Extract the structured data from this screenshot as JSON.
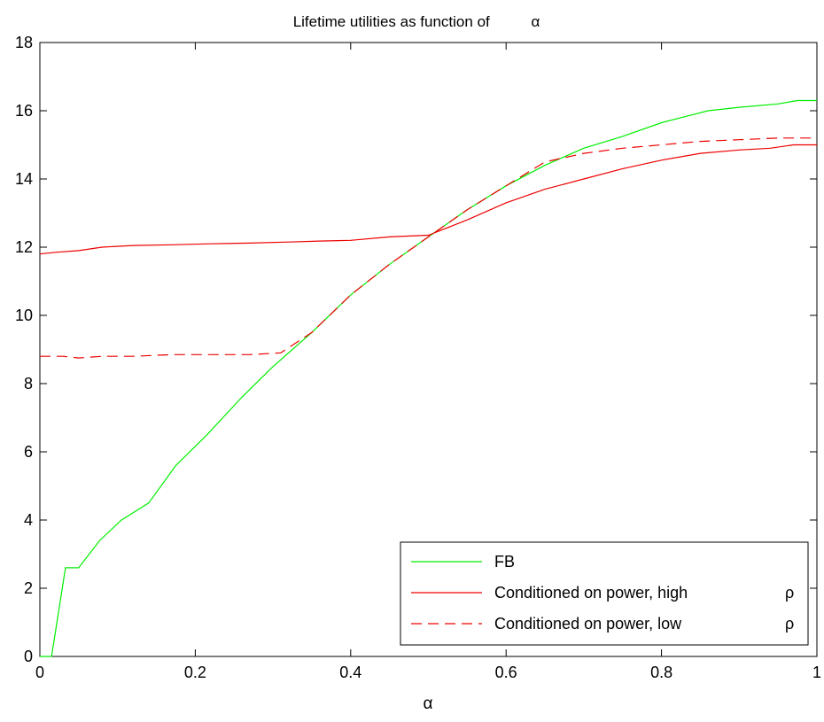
{
  "chart_data": {
    "type": "line",
    "title": "Lifetime utilities as function of",
    "title_symbol": "α",
    "xlabel": "α",
    "ylabel": "",
    "xlim": [
      0,
      1
    ],
    "ylim": [
      0,
      18
    ],
    "x_ticks": [
      "0",
      "0.2",
      "0.4",
      "0.6",
      "0.8",
      "1"
    ],
    "y_ticks": [
      "0",
      "2",
      "4",
      "6",
      "8",
      "10",
      "12",
      "14",
      "16",
      "18"
    ],
    "grid": false,
    "legend_position": "bottom-right",
    "series": [
      {
        "name": "FB",
        "legend_symbol": "",
        "color": "#00ee00",
        "style": "solid",
        "x": [
          0,
          0.015,
          0.033,
          0.05,
          0.077,
          0.105,
          0.14,
          0.175,
          0.215,
          0.26,
          0.3,
          0.35,
          0.4,
          0.45,
          0.5,
          0.55,
          0.6,
          0.65,
          0.7,
          0.75,
          0.8,
          0.86,
          0.9,
          0.95,
          0.975,
          1.0
        ],
        "y": [
          0.0,
          0.0,
          2.6,
          2.6,
          3.4,
          4.0,
          4.5,
          5.6,
          6.5,
          7.6,
          8.5,
          9.5,
          10.6,
          11.5,
          12.3,
          13.1,
          13.8,
          14.4,
          14.9,
          15.25,
          15.65,
          16.0,
          16.1,
          16.2,
          16.3,
          16.3
        ]
      },
      {
        "name": "Conditioned on power, high",
        "legend_symbol": "ρ",
        "color": "#ee0000",
        "style": "solid",
        "x": [
          0,
          0.02,
          0.05,
          0.08,
          0.12,
          0.17,
          0.22,
          0.27,
          0.32,
          0.36,
          0.4,
          0.45,
          0.5,
          0.55,
          0.6,
          0.65,
          0.7,
          0.75,
          0.8,
          0.85,
          0.9,
          0.94,
          0.97,
          1.0
        ],
        "y": [
          11.8,
          11.85,
          11.9,
          12.0,
          12.05,
          12.07,
          12.1,
          12.12,
          12.15,
          12.18,
          12.2,
          12.3,
          12.35,
          12.8,
          13.3,
          13.7,
          14.0,
          14.3,
          14.55,
          14.75,
          14.85,
          14.9,
          15.0,
          15.0
        ]
      },
      {
        "name": "Conditioned on power, low",
        "legend_symbol": "ρ",
        "color": "#ee0000",
        "style": "dashed",
        "x": [
          0,
          0.03,
          0.05,
          0.08,
          0.12,
          0.17,
          0.22,
          0.27,
          0.31,
          0.35,
          0.4,
          0.45,
          0.5,
          0.55,
          0.6,
          0.65,
          0.7,
          0.75,
          0.8,
          0.85,
          0.9,
          0.95,
          1.0
        ],
        "y": [
          8.8,
          8.8,
          8.75,
          8.8,
          8.8,
          8.85,
          8.85,
          8.85,
          8.9,
          9.5,
          10.6,
          11.5,
          12.3,
          13.1,
          13.8,
          14.5,
          14.75,
          14.9,
          15.0,
          15.1,
          15.15,
          15.2,
          15.2
        ]
      }
    ]
  }
}
